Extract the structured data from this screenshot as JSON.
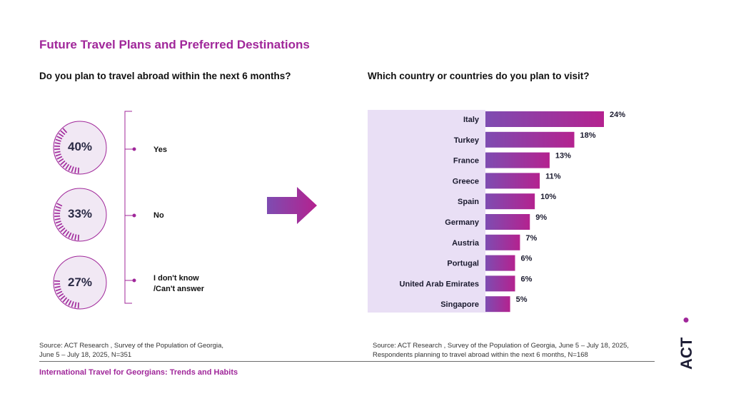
{
  "page": {
    "title": "Future Travel Plans and Preferred Destinations",
    "footer": "International Travel for Georgians: Trends and Habits",
    "logo_text": "ACT"
  },
  "left_panel": {
    "question": "Do you plan to travel abroad within the next 6 months?",
    "source_line1": "Source: ACT Research , Survey of the Population of Georgia,",
    "source_line2": "June 5 – July 18, 2025, N=351",
    "items": [
      {
        "pct_label": "40%",
        "value": 40,
        "option_line1": "Yes",
        "option_line2": ""
      },
      {
        "pct_label": "33%",
        "value": 33,
        "option_line1": "No",
        "option_line2": ""
      },
      {
        "pct_label": "27%",
        "value": 27,
        "option_line1": "I don't know",
        "option_line2": "/Can't answer"
      }
    ]
  },
  "right_panel": {
    "question": "Which country or countries do you plan to visit?",
    "source_line1": "Source: ACT Research , Survey of the Population of Georgia, June 5 – July 18, 2025,",
    "source_line2": "Respondents planning to travel abroad within the next 6 months, N=168"
  },
  "colors": {
    "accent": "#a0279a",
    "bar_start": "#7e4cb1",
    "bar_end": "#b4228f",
    "panel_bg": "#e9dff5",
    "circle_bg": "#f1e8f4"
  },
  "chart_data": [
    {
      "type": "pie",
      "title": "Do you plan to travel abroad within the next 6 months?",
      "categories": [
        "Yes",
        "No",
        "I don't know /Can't answer"
      ],
      "values": [
        40,
        33,
        27
      ]
    },
    {
      "type": "bar",
      "orientation": "horizontal",
      "title": "Which country or countries do you plan to visit?",
      "categories": [
        "Italy",
        "Turkey",
        "France",
        "Greece",
        "Spain",
        "Germany",
        "Austria",
        "Portugal",
        "United Arab Emirates",
        "Singapore"
      ],
      "values": [
        24,
        18,
        13,
        11,
        10,
        9,
        7,
        6,
        6,
        5
      ],
      "labels": [
        "24%",
        "18%",
        "13%",
        "11%",
        "10%",
        "9%",
        "7%",
        "6%",
        "6%",
        "5%"
      ],
      "xlim": [
        0,
        24
      ],
      "grid": false,
      "legend": "none"
    }
  ]
}
